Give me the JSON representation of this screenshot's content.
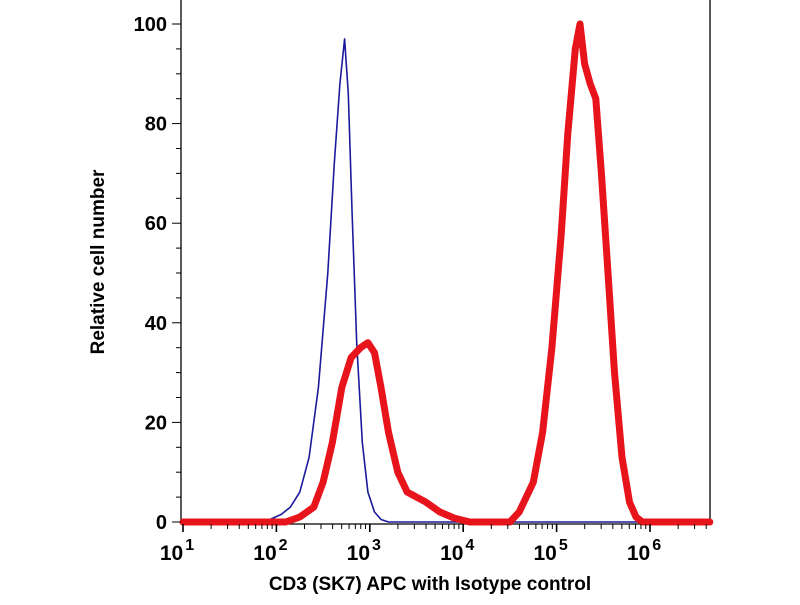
{
  "chart_data": {
    "type": "line",
    "title": "",
    "xlabel": "CD3 (SK7) APC with Isotype control",
    "ylabel": "Relative cell number",
    "xscale": "log",
    "xlim_log10": [
      0.98,
      6.64
    ],
    "ylim": [
      -1,
      104
    ],
    "x_ticks": [
      {
        "base": "10",
        "exp": "1",
        "value": 1
      },
      {
        "base": "10",
        "exp": "2",
        "value": 2
      },
      {
        "base": "10",
        "exp": "3",
        "value": 3
      },
      {
        "base": "10",
        "exp": "4",
        "value": 4
      },
      {
        "base": "10",
        "exp": "5",
        "value": 5
      },
      {
        "base": "10",
        "exp": "6",
        "value": 6
      }
    ],
    "y_ticks": [
      "0",
      "20",
      "40",
      "60",
      "80",
      "100"
    ],
    "grid": false,
    "series": [
      {
        "name": "Isotype control",
        "color": "#1a1a9c",
        "log10_x": [
          1.0,
          1.8,
          1.93,
          2.05,
          2.15,
          2.25,
          2.35,
          2.45,
          2.55,
          2.62,
          2.68,
          2.73,
          2.77,
          2.81,
          2.86,
          2.92,
          2.98,
          3.05,
          3.12,
          3.2,
          6.64
        ],
        "y": [
          0,
          0,
          0.5,
          1.5,
          3,
          6,
          13,
          27,
          50,
          72,
          88,
          97,
          86,
          62,
          36,
          16,
          6,
          2,
          0.5,
          0,
          0
        ]
      },
      {
        "name": "CD3 (SK7) APC",
        "color": "#e8141c",
        "log10_x": [
          1.0,
          2.1,
          2.25,
          2.4,
          2.5,
          2.6,
          2.7,
          2.8,
          2.9,
          2.98,
          3.05,
          3.12,
          3.2,
          3.3,
          3.4,
          3.5,
          3.6,
          3.75,
          3.9,
          4.07,
          4.3,
          4.5,
          4.6,
          4.75,
          4.85,
          4.95,
          5.05,
          5.12,
          5.2,
          5.25,
          5.3,
          5.36,
          5.42,
          5.48,
          5.55,
          5.62,
          5.7,
          5.78,
          5.85,
          5.92,
          6.64
        ],
        "y": [
          0,
          0,
          1,
          3,
          8,
          16,
          27,
          33,
          35,
          36,
          34,
          27,
          18,
          10,
          6,
          5,
          4,
          2,
          0.8,
          0,
          0,
          0,
          2,
          8,
          18,
          35,
          58,
          78,
          95,
          100,
          92,
          88,
          85,
          70,
          50,
          30,
          13,
          4,
          1,
          0,
          0
        ]
      }
    ]
  }
}
